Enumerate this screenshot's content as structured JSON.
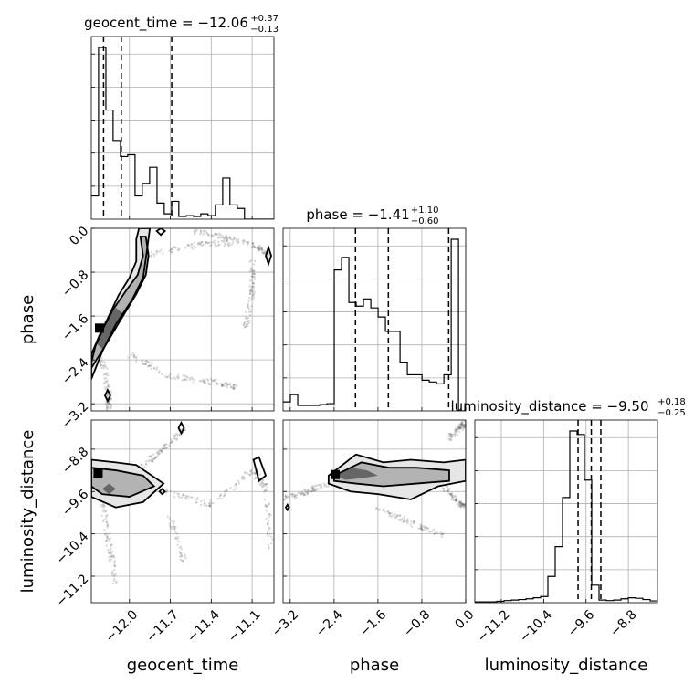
{
  "chart_data": {
    "type": "corner",
    "parameters": [
      "geocent_time",
      "phase",
      "luminosity_distance"
    ],
    "axis_labels": [
      "geocent_time",
      "phase",
      "luminosity_distance"
    ],
    "ranges": {
      "geocent_time": [
        -12.28,
        -10.94
      ],
      "phase": [
        -3.33,
        0.0
      ],
      "luminosity_distance": [
        -11.7,
        -8.25
      ]
    },
    "ticks": {
      "geocent_time": {
        "values": [
          -12.0,
          -11.7,
          -11.4,
          -11.1
        ],
        "labels": [
          "−12.0",
          "−11.7",
          "−11.4",
          "−11.1"
        ]
      },
      "phase": {
        "values": [
          -3.2,
          -2.4,
          -1.6,
          -0.8,
          0.0
        ],
        "labels": [
          "−3.2",
          "−2.4",
          "−1.6",
          "−0.8",
          "0.0"
        ]
      },
      "luminosity_distance": {
        "values": [
          -11.2,
          -10.4,
          -9.6,
          -8.8
        ],
        "labels": [
          "−11.2",
          "−10.4",
          "−9.6",
          "−8.8"
        ]
      }
    },
    "row_tick_labels": {
      "phase": [
        "0.0",
        "−0.8",
        "−1.6",
        "−2.4",
        "−3.2"
      ],
      "luminosity_distance": [
        "−8.8",
        "−9.6",
        "−10.4",
        "−11.2"
      ]
    },
    "titles": [
      {
        "param": "geocent_time",
        "text": "geocent_time = −12.06",
        "plus": "+0.37",
        "minus": "−0.13"
      },
      {
        "param": "phase",
        "text": "phase = −1.41",
        "plus": "+1.10",
        "minus": "−0.60"
      },
      {
        "param": "luminosity_distance",
        "text": "luminosity_distance = −9.50",
        "plus": "+0.18",
        "minus": "−0.25"
      }
    ],
    "histograms": {
      "geocent_time": {
        "bins": [
          -12.28,
          -12.227,
          -12.173,
          -12.12,
          -12.066,
          -12.013,
          -11.959,
          -11.906,
          -11.852,
          -11.798,
          -11.745,
          -11.691,
          -11.638,
          -11.584,
          -11.531,
          -11.477,
          -11.424,
          -11.37,
          -11.316,
          -11.263,
          -11.209,
          -11.156,
          -11.102,
          -11.048,
          -10.994,
          -10.94
        ],
        "counts": [
          0.13,
          0.96,
          0.61,
          0.44,
          0.35,
          0.36,
          0.13,
          0.2,
          0.29,
          0.09,
          0.03,
          0.1,
          0.015,
          0.02,
          0.015,
          0.03,
          0.02,
          0.08,
          0.23,
          0.08,
          0.06,
          0,
          0,
          0,
          0
        ],
        "quantiles": [
          -12.19,
          -12.06,
          -11.69
        ]
      },
      "phase": {
        "bins": [
          -3.33,
          -3.197,
          -3.063,
          -2.93,
          -2.797,
          -2.663,
          -2.53,
          -2.397,
          -2.264,
          -2.13,
          -1.997,
          -1.864,
          -1.73,
          -1.597,
          -1.464,
          -1.33,
          -1.197,
          -1.064,
          -0.93,
          -0.797,
          -0.664,
          -0.531,
          -0.397,
          -0.264,
          -0.131,
          0.0
        ],
        "counts": [
          0.05,
          0.09,
          0.03,
          0.03,
          0.03,
          0.035,
          0.04,
          0.78,
          0.85,
          0.6,
          0.58,
          0.62,
          0.57,
          0.52,
          0.44,
          0.44,
          0.27,
          0.2,
          0.2,
          0.17,
          0.16,
          0.15,
          0.2,
          0.95,
          0
        ],
        "quantiles": [
          -2.01,
          -1.41,
          -0.31
        ]
      },
      "luminosity_distance": {
        "bins": [
          -11.7,
          -11.562,
          -11.424,
          -11.286,
          -11.148,
          -11.01,
          -10.872,
          -10.734,
          -10.596,
          -10.458,
          -10.32,
          -10.182,
          -10.044,
          -9.906,
          -9.768,
          -9.63,
          -9.492,
          -9.354,
          -9.216,
          -9.078,
          -8.94,
          -8.802,
          -8.664,
          -8.526,
          -8.388,
          -8.25
        ],
        "counts": [
          0.005,
          0.005,
          0.005,
          0.008,
          0.012,
          0.015,
          0.018,
          0.022,
          0.028,
          0.035,
          0.15,
          0.32,
          0.6,
          0.98,
          0.96,
          0.7,
          0.1,
          0.015,
          0.012,
          0.015,
          0.022,
          0.028,
          0.025,
          0.018,
          0.01
        ],
        "quantiles": [
          -9.75,
          -9.5,
          -9.32
        ]
      }
    },
    "densities": [
      {
        "x": "geocent_time",
        "y": "phase",
        "levels": [
          [
            [
              -12.28,
              -2.45
            ],
            [
              -12.25,
              -2.15
            ],
            [
              -12.17,
              -1.7
            ],
            [
              -12.08,
              -1.22
            ],
            [
              -12.0,
              -0.9
            ],
            [
              -11.95,
              -0.6
            ],
            [
              -11.95,
              -0.2
            ],
            [
              -11.93,
              0.0
            ],
            [
              -11.85,
              0.0
            ],
            [
              -11.88,
              -0.55
            ],
            [
              -11.9,
              -0.9
            ],
            [
              -11.98,
              -1.3
            ],
            [
              -12.1,
              -1.75
            ],
            [
              -12.2,
              -2.25
            ],
            [
              -12.28,
              -2.75
            ]
          ],
          [
            [
              -12.28,
              -2.3
            ],
            [
              -12.22,
              -1.95
            ],
            [
              -12.12,
              -1.48
            ],
            [
              -12.02,
              -1.12
            ],
            [
              -11.94,
              -0.85
            ],
            [
              -11.9,
              -0.5
            ],
            [
              -11.92,
              -0.15
            ],
            [
              -11.88,
              -0.15
            ],
            [
              -11.86,
              -0.5
            ],
            [
              -11.88,
              -0.85
            ],
            [
              -11.95,
              -1.2
            ],
            [
              -12.06,
              -1.65
            ],
            [
              -12.18,
              -2.15
            ],
            [
              -12.28,
              -2.55
            ]
          ],
          [
            [
              -12.24,
              -2.1
            ],
            [
              -12.18,
              -1.7
            ],
            [
              -12.1,
              -1.45
            ],
            [
              -12.05,
              -1.55
            ],
            [
              -12.12,
              -1.85
            ],
            [
              -12.2,
              -2.2
            ]
          ]
        ],
        "islands": [
          [
            [
              -12.18,
              -3.05
            ],
            [
              -12.16,
              -2.95
            ],
            [
              -12.14,
              -3.05
            ],
            [
              -12.16,
              -3.15
            ]
          ],
          [
            [
              -11.0,
              -0.5
            ],
            [
              -10.98,
              -0.35
            ],
            [
              -10.96,
              -0.5
            ],
            [
              -10.98,
              -0.65
            ]
          ],
          [
            [
              -11.8,
              -0.05
            ],
            [
              -11.77,
              0.0
            ],
            [
              -11.74,
              -0.05
            ],
            [
              -11.77,
              -0.12
            ]
          ]
        ],
        "peak": [
          -12.22,
          -1.82
        ],
        "ridges": [
          [
            [
              -12.2,
              -2.4
            ],
            [
              -12.15,
              -3.0
            ],
            [
              -12.15,
              -3.33
            ]
          ],
          [
            [
              -11.55,
              -0.05
            ],
            [
              -11.3,
              -0.15
            ],
            [
              -11.05,
              -0.35
            ],
            [
              -10.98,
              -0.5
            ]
          ],
          [
            [
              -11.1,
              -0.55
            ],
            [
              -11.1,
              -1.2
            ],
            [
              -11.15,
              -1.8
            ]
          ],
          [
            [
              -11.9,
              -0.5
            ],
            [
              -11.5,
              -0.3
            ],
            [
              -11.2,
              -0.25
            ]
          ],
          [
            [
              -12.0,
              -2.3
            ],
            [
              -11.7,
              -2.7
            ],
            [
              -11.4,
              -2.8
            ],
            [
              -11.2,
              -2.9
            ]
          ]
        ]
      },
      {
        "x": "geocent_time",
        "y": "luminosity_distance",
        "levels": [
          [
            [
              -12.28,
              -9.0
            ],
            [
              -12.1,
              -9.05
            ],
            [
              -11.95,
              -9.1
            ],
            [
              -11.75,
              -9.45
            ],
            [
              -11.9,
              -9.8
            ],
            [
              -12.1,
              -9.9
            ],
            [
              -12.28,
              -9.7
            ]
          ],
          [
            [
              -12.28,
              -9.15
            ],
            [
              -12.1,
              -9.2
            ],
            [
              -11.9,
              -9.3
            ],
            [
              -11.82,
              -9.5
            ],
            [
              -12.0,
              -9.7
            ],
            [
              -12.2,
              -9.65
            ],
            [
              -12.28,
              -9.5
            ]
          ],
          [
            [
              -12.2,
              -9.55
            ],
            [
              -12.15,
              -9.45
            ],
            [
              -12.1,
              -9.55
            ],
            [
              -12.15,
              -9.65
            ]
          ]
        ],
        "islands": [
          [
            [
              -11.09,
              -9.0
            ],
            [
              -11.05,
              -9.4
            ],
            [
              -11.0,
              -9.3
            ],
            [
              -11.05,
              -8.95
            ]
          ],
          [
            [
              -11.64,
              -8.4
            ],
            [
              -11.62,
              -8.3
            ],
            [
              -11.6,
              -8.4
            ],
            [
              -11.62,
              -8.5
            ]
          ],
          [
            [
              -11.78,
              -9.6
            ],
            [
              -11.76,
              -9.55
            ],
            [
              -11.74,
              -9.6
            ],
            [
              -11.76,
              -9.65
            ]
          ]
        ],
        "peak": [
          -12.23,
          -9.25
        ],
        "ridges": [
          [
            [
              -11.75,
              -9.6
            ],
            [
              -11.4,
              -9.85
            ],
            [
              -11.1,
              -9.2
            ],
            [
              -11.0,
              -9.5
            ],
            [
              -10.96,
              -10.7
            ]
          ],
          [
            [
              -11.9,
              -9.1
            ],
            [
              -11.75,
              -8.8
            ],
            [
              -11.6,
              -8.4
            ]
          ],
          [
            [
              -12.2,
              -9.8
            ],
            [
              -12.15,
              -10.6
            ],
            [
              -12.1,
              -11.3
            ]
          ],
          [
            [
              -11.7,
              -10.1
            ],
            [
              -11.6,
              -10.9
            ]
          ]
        ]
      },
      {
        "x": "phase",
        "y": "luminosity_distance",
        "levels": [
          [
            [
              -2.5,
              -9.3
            ],
            [
              -2.0,
              -8.9
            ],
            [
              -1.5,
              -9.05
            ],
            [
              -1.0,
              -9.0
            ],
            [
              -0.4,
              -9.05
            ],
            [
              0.0,
              -9.0
            ],
            [
              0.0,
              -9.4
            ],
            [
              -0.5,
              -9.5
            ],
            [
              -1.0,
              -9.75
            ],
            [
              -1.6,
              -9.65
            ],
            [
              -2.1,
              -9.6
            ],
            [
              -2.5,
              -9.45
            ]
          ],
          [
            [
              -2.4,
              -9.3
            ],
            [
              -1.9,
              -9.05
            ],
            [
              -1.4,
              -9.15
            ],
            [
              -0.9,
              -9.15
            ],
            [
              -0.3,
              -9.2
            ],
            [
              -0.3,
              -9.4
            ],
            [
              -0.9,
              -9.45
            ],
            [
              -1.5,
              -9.5
            ],
            [
              -2.0,
              -9.45
            ],
            [
              -2.4,
              -9.4
            ]
          ],
          [
            [
              -2.35,
              -9.3
            ],
            [
              -2.1,
              -9.15
            ],
            [
              -1.8,
              -9.2
            ],
            [
              -1.6,
              -9.3
            ],
            [
              -1.9,
              -9.35
            ],
            [
              -2.2,
              -9.38
            ]
          ]
        ],
        "islands": [
          [
            [
              -3.28,
              -9.9
            ],
            [
              -3.25,
              -9.85
            ],
            [
              -3.22,
              -9.9
            ],
            [
              -3.25,
              -9.95
            ]
          ]
        ],
        "peak": [
          -2.38,
          -9.28
        ],
        "ridges": [
          [
            [
              -3.33,
              -9.75
            ],
            [
              -2.9,
              -9.6
            ],
            [
              -2.5,
              -9.45
            ]
          ],
          [
            [
              -1.6,
              -9.9
            ],
            [
              -1.0,
              -10.2
            ],
            [
              -0.4,
              -10.45
            ]
          ],
          [
            [
              -0.4,
              -9.5
            ],
            [
              -0.15,
              -9.8
            ],
            [
              0.0,
              -9.9
            ]
          ],
          [
            [
              -0.3,
              -8.6
            ],
            [
              -0.1,
              -8.4
            ],
            [
              0.0,
              -8.3
            ]
          ]
        ]
      }
    ]
  }
}
